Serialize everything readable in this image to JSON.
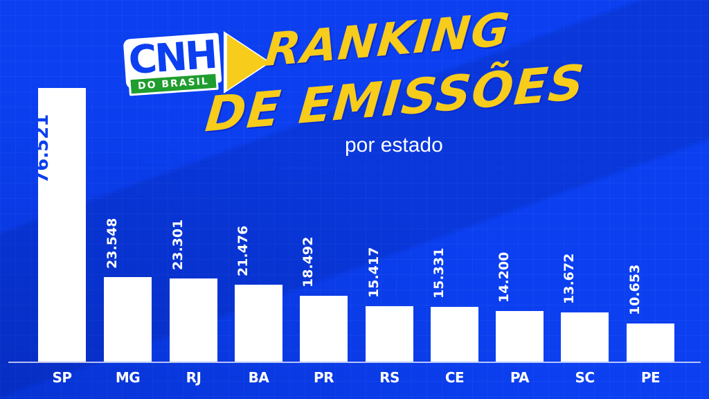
{
  "header": {
    "logo": {
      "main": "CNH",
      "sub": "DO BRASIL"
    },
    "title_line1": "RANKING",
    "title_line2": "DE EMISSÕES",
    "subtitle": "por estado"
  },
  "colors": {
    "background": "#0b3ff0",
    "bar": "#ffffff",
    "title": "#f7cc1a",
    "logo_green": "#1f9d2e"
  },
  "chart_data": {
    "type": "bar",
    "title": "Ranking de Emissões por estado",
    "xlabel": "",
    "ylabel": "",
    "categories": [
      "SP",
      "MG",
      "RJ",
      "BA",
      "PR",
      "RS",
      "CE",
      "PA",
      "SC",
      "PE"
    ],
    "values": [
      76521,
      23548,
      23301,
      21476,
      18492,
      15417,
      15331,
      14200,
      13672,
      10653
    ],
    "value_labels": [
      "76.521",
      "23.548",
      "23.301",
      "21.476",
      "18.492",
      "15.417",
      "15.331",
      "14.200",
      "13.672",
      "10.653"
    ],
    "ylim": [
      0,
      76521
    ],
    "grid": false,
    "legend": null
  },
  "bars": [
    {
      "label": "SP",
      "value_text": "76.521"
    },
    {
      "label": "MG",
      "value_text": "23.548"
    },
    {
      "label": "RJ",
      "value_text": "23.301"
    },
    {
      "label": "BA",
      "value_text": "21.476"
    },
    {
      "label": "PR",
      "value_text": "18.492"
    },
    {
      "label": "RS",
      "value_text": "15.417"
    },
    {
      "label": "CE",
      "value_text": "15.331"
    },
    {
      "label": "PA",
      "value_text": "14.200"
    },
    {
      "label": "SC",
      "value_text": "13.672"
    },
    {
      "label": "PE",
      "value_text": "10.653"
    }
  ]
}
